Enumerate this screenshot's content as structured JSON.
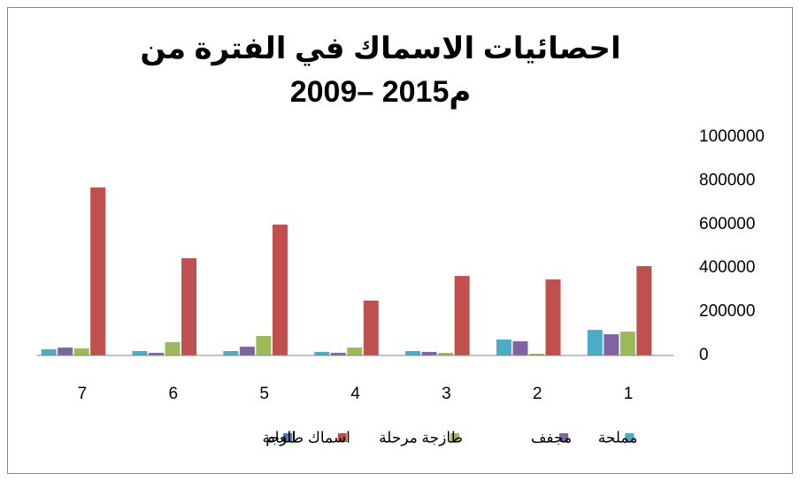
{
  "chart_data": {
    "type": "bar",
    "title": [
      "احصائيات الاسماك في الفترة من",
      "2009– 2015م"
    ],
    "categories": [
      "1",
      "2",
      "3",
      "4",
      "5",
      "6",
      "7"
    ],
    "series": [
      {
        "name": "العام",
        "color": "#4f81bd",
        "values": [
          2009,
          2010,
          2011,
          2012,
          2013,
          2014,
          2015
        ]
      },
      {
        "name": "اسماك طازجة",
        "color": "#c0504d",
        "values": [
          409000,
          348000,
          364000,
          251000,
          599000,
          445000,
          769000
        ]
      },
      {
        "name": "طازجة مرحلة",
        "color": "#9bbb59",
        "values": [
          109000,
          8000,
          12000,
          36000,
          89000,
          61000,
          32000
        ]
      },
      {
        "name": "مجفف",
        "color": "#8064a2",
        "values": [
          97000,
          65000,
          16000,
          12000,
          40000,
          12000,
          36000
        ]
      },
      {
        "name": "مملحة",
        "color": "#4bacc6",
        "values": [
          117000,
          73000,
          20000,
          16000,
          20000,
          20000,
          28000
        ]
      }
    ],
    "ylim": [
      0,
      1000000
    ],
    "yticks": [
      0,
      200000,
      400000,
      600000,
      800000,
      1000000
    ],
    "grid": false,
    "legend": "bottom",
    "right_to_left": true
  }
}
